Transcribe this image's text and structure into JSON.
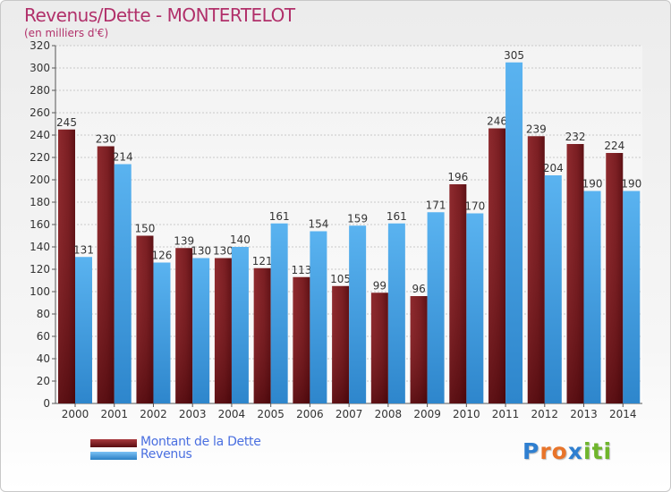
{
  "header": {
    "title": "Revenus/Dette - MONTERTELOT",
    "subtitle": "(en milliers d'€)"
  },
  "chart_data": {
    "type": "bar",
    "title": "Revenus/Dette - MONTERTELOT",
    "subtitle": "(en milliers d'€)",
    "categories": [
      "2000",
      "2001",
      "2002",
      "2003",
      "2004",
      "2005",
      "2006",
      "2007",
      "2008",
      "2009",
      "2010",
      "2011",
      "2012",
      "2013",
      "2014"
    ],
    "series": [
      {
        "name": "Montant de la Dette",
        "color": "#7a1e22",
        "values": [
          245,
          230,
          150,
          139,
          130,
          121,
          113,
          105,
          99,
          96,
          196,
          246,
          239,
          232,
          224
        ],
        "labels": [
          "245",
          "230",
          "150",
          "139",
          "130",
          "121",
          "113",
          "105",
          "99",
          "96",
          "196",
          "246",
          "239",
          "232",
          "224"
        ]
      },
      {
        "name": "Revenus",
        "color": "#3f9de3",
        "values": [
          131,
          214,
          126,
          130,
          140,
          161,
          154,
          159,
          161,
          171,
          170,
          305,
          204,
          190,
          190
        ],
        "labels": [
          "131",
          "214",
          "126",
          "130",
          "140",
          "161",
          "154",
          "159",
          "161",
          "171",
          "170",
          "305",
          "204",
          "190",
          "190"
        ]
      }
    ],
    "ylim": [
      0,
      320
    ],
    "yticks": [
      0,
      20,
      40,
      60,
      80,
      100,
      120,
      140,
      160,
      180,
      200,
      220,
      240,
      260,
      280,
      300,
      320
    ],
    "grid": true,
    "legend": "bottom-left"
  },
  "legend": {
    "items": [
      {
        "label": "Montant de la Dette",
        "color": "#7a1e22"
      },
      {
        "label": "Revenus",
        "color": "#3f9de3"
      }
    ]
  },
  "logo": {
    "letters": [
      "P",
      "r",
      "o",
      "x",
      "i",
      "t",
      "i"
    ],
    "colors": [
      "#2f7fd0",
      "#e8742a",
      "#e8742a",
      "#2f7fd0",
      "#6fb52c",
      "#6fb52c",
      "#6fb52c"
    ]
  }
}
